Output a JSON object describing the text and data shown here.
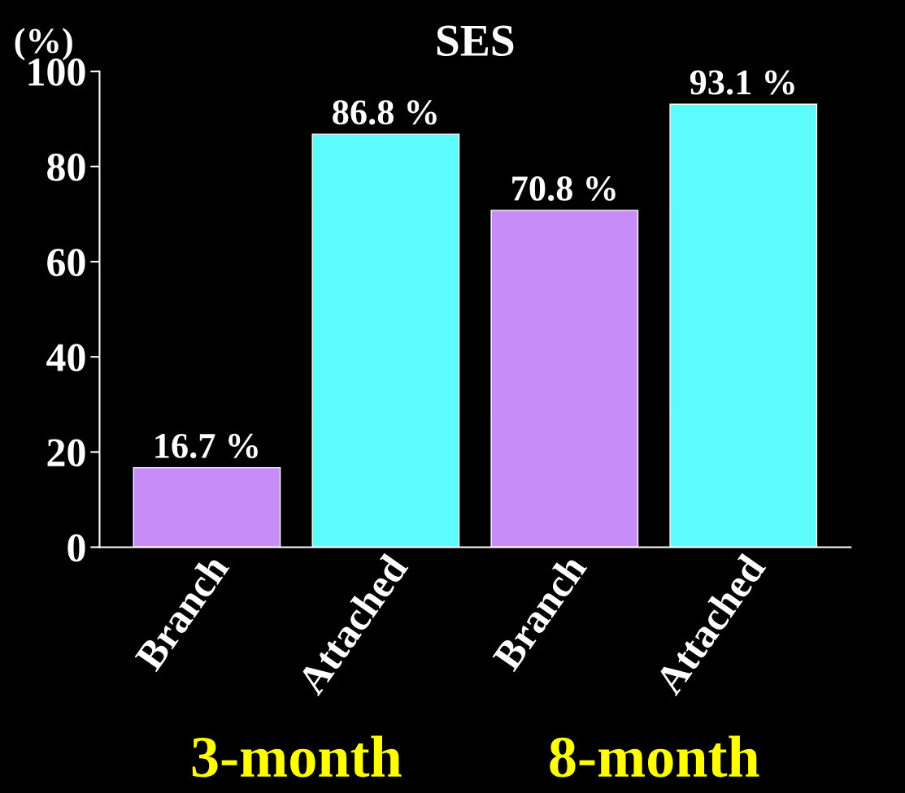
{
  "chart_data": {
    "type": "bar",
    "title": "SES",
    "ylabel": "(%)",
    "categories": [
      "Branch",
      "Attached",
      "Branch",
      "Attached"
    ],
    "values": [
      16.7,
      86.8,
      70.8,
      93.1
    ],
    "colors": [
      "#c88cf8",
      "#5cfcfc",
      "#c88cf8",
      "#5cfcfc"
    ],
    "value_labels": [
      "16.7 %",
      "86.8 %",
      "70.8 %",
      "93.1 %"
    ],
    "annotations": [
      "3-month",
      "8-month"
    ],
    "ylim": [
      0,
      100
    ],
    "yticks": [
      0,
      20,
      40,
      60,
      80,
      100
    ],
    "grid": false,
    "legend": false
  }
}
